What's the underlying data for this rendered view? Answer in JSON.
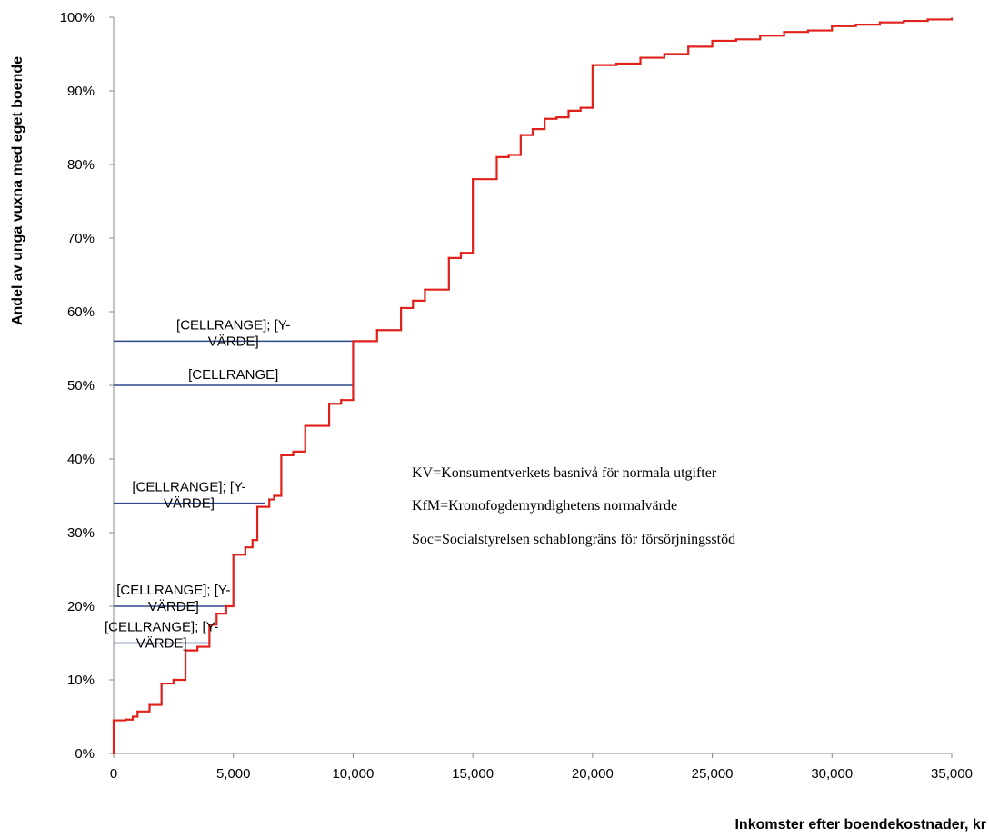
{
  "chart_data": {
    "type": "line",
    "xlabel": "Inkomster efter boendekostnader, kr",
    "ylabel": "Andel av unga vuxna med eget boende",
    "xlim": [
      0,
      35000
    ],
    "ylim": [
      0,
      1
    ],
    "grid": false,
    "x_ticks": [
      "0",
      "5,000",
      "10,000",
      "15,000",
      "20,000",
      "25,000",
      "30,000",
      "35,000"
    ],
    "y_ticks": [
      "0%",
      "10%",
      "20%",
      "30%",
      "40%",
      "50%",
      "60%",
      "70%",
      "80%",
      "90%",
      "100%"
    ],
    "series": [
      {
        "color": "#e0201b",
        "step": true,
        "points": [
          [
            0,
            0.0
          ],
          [
            0,
            0.045
          ],
          [
            500,
            0.046
          ],
          [
            800,
            0.05
          ],
          [
            1000,
            0.057
          ],
          [
            1500,
            0.066
          ],
          [
            2000,
            0.095
          ],
          [
            2500,
            0.1
          ],
          [
            3000,
            0.108
          ],
          [
            3000,
            0.14
          ],
          [
            3500,
            0.145
          ],
          [
            4000,
            0.175
          ],
          [
            4300,
            0.19
          ],
          [
            4700,
            0.2
          ],
          [
            5000,
            0.27
          ],
          [
            5500,
            0.28
          ],
          [
            5800,
            0.29
          ],
          [
            6000,
            0.335
          ],
          [
            6500,
            0.345
          ],
          [
            6700,
            0.35
          ],
          [
            7000,
            0.405
          ],
          [
            7500,
            0.41
          ],
          [
            8000,
            0.445
          ],
          [
            9000,
            0.475
          ],
          [
            9500,
            0.48
          ],
          [
            10000,
            0.56
          ],
          [
            11000,
            0.575
          ],
          [
            12000,
            0.605
          ],
          [
            12500,
            0.615
          ],
          [
            13000,
            0.63
          ],
          [
            14000,
            0.673
          ],
          [
            14500,
            0.68
          ],
          [
            15000,
            0.78
          ],
          [
            16000,
            0.81
          ],
          [
            16500,
            0.813
          ],
          [
            17000,
            0.84
          ],
          [
            17500,
            0.848
          ],
          [
            18000,
            0.862
          ],
          [
            18500,
            0.864
          ],
          [
            19000,
            0.873
          ],
          [
            19500,
            0.877
          ],
          [
            20000,
            0.935
          ],
          [
            21000,
            0.937
          ],
          [
            22000,
            0.945
          ],
          [
            23000,
            0.95
          ],
          [
            24000,
            0.96
          ],
          [
            25000,
            0.968
          ],
          [
            26000,
            0.97
          ],
          [
            27000,
            0.975
          ],
          [
            28000,
            0.98
          ],
          [
            29000,
            0.982
          ],
          [
            30000,
            0.988
          ],
          [
            31000,
            0.99
          ],
          [
            32000,
            0.993
          ],
          [
            33000,
            0.995
          ],
          [
            34000,
            0.997
          ],
          [
            35000,
            0.998
          ]
        ]
      }
    ],
    "reference_lines": [
      {
        "y": 0.56,
        "x_end": 10000,
        "label_line1": "[CELLRANGE]; [Y-",
        "label_line2": "VÄRDE]",
        "color": "#2e4a8a"
      },
      {
        "y": 0.5,
        "x_end": 10000,
        "label_line1": "[CELLRANGE]",
        "label_line2": "",
        "color": "#2e4a8a"
      },
      {
        "y": 0.34,
        "x_end": 6300,
        "label_line1": "[CELLRANGE]; [Y-",
        "label_line2": "VÄRDE]",
        "color": "#2e4a8a"
      },
      {
        "y": 0.2,
        "x_end": 5000,
        "label_line1": "[CELLRANGE]; [Y-",
        "label_line2": "VÄRDE]",
        "color": "#2e4a8a"
      },
      {
        "y": 0.15,
        "x_end": 4000,
        "label_line1": "[CELLRANGE]; [Y-",
        "label_line2": "VÄRDE]",
        "color": "#2e4a8a"
      }
    ],
    "annotations": [
      "KV=Konsumentverkets basnivå för normala utgifter",
      "KfM=Kronofogdemyndighetens normalvärde",
      "Soc=Socialstyrelsen schablongräns för försörjningsstöd"
    ]
  }
}
